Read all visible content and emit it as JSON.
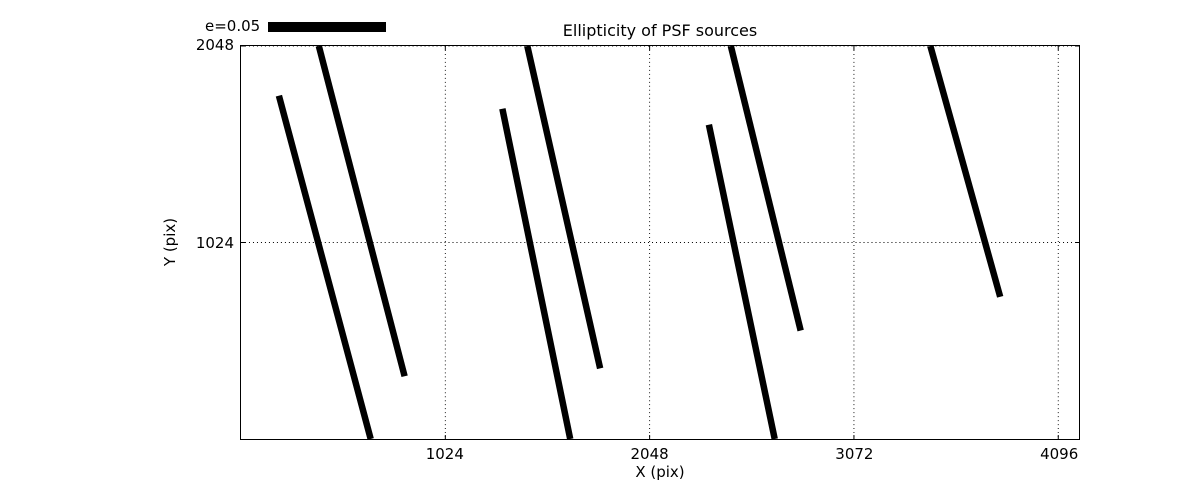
{
  "chart_data": {
    "type": "line",
    "title": "Ellipticity of PSF sources",
    "xlabel": "X (pix)",
    "ylabel": "Y (pix)",
    "xlim": [
      0,
      4200
    ],
    "ylim": [
      0,
      2048
    ],
    "xticks": [
      1024,
      2048,
      3072,
      4096
    ],
    "yticks": [
      1024,
      2048
    ],
    "grid": "dotted",
    "grid_color": "#000000",
    "legend": {
      "label": "e=0.05",
      "position": "top-left-outside"
    },
    "stroke_color": "#000000",
    "stroke_width_px": 6.5,
    "segments": [
      {
        "x1": 190,
        "y1": 1789,
        "x2": 650,
        "y2": 0
      },
      {
        "x1": 390,
        "y1": 2048,
        "x2": 820,
        "y2": 327
      },
      {
        "x1": 1310,
        "y1": 1721,
        "x2": 1650,
        "y2": 0
      },
      {
        "x1": 1435,
        "y1": 2048,
        "x2": 1800,
        "y2": 368
      },
      {
        "x1": 2345,
        "y1": 1638,
        "x2": 2675,
        "y2": 0
      },
      {
        "x1": 2455,
        "y1": 2048,
        "x2": 2805,
        "y2": 565
      },
      {
        "x1": 3455,
        "y1": 2048,
        "x2": 3805,
        "y2": 741
      }
    ]
  }
}
